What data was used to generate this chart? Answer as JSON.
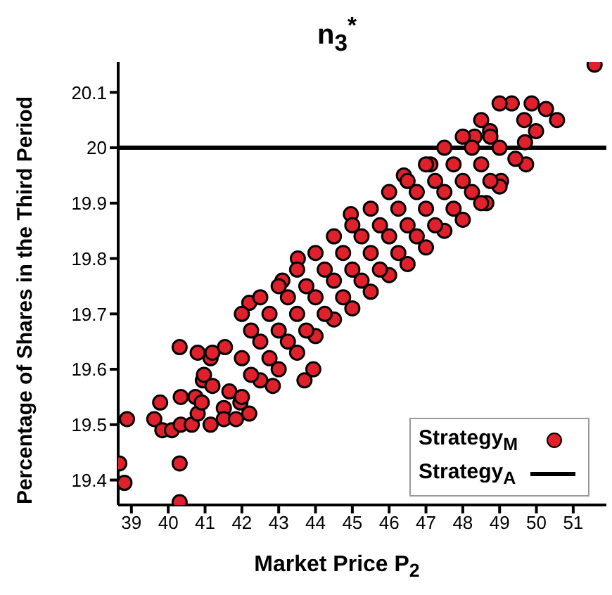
{
  "chart_data": {
    "type": "scatter",
    "title": "n$_{3}$$^{*}$",
    "xlabel": "Market Price P$_{2}$",
    "ylabel": "Percentage of Shares in the Third Period",
    "xlim": [
      38.64,
      51.9
    ],
    "ylim": [
      19.355,
      20.155
    ],
    "xticks": [
      39,
      40,
      41,
      42,
      43,
      44,
      45,
      46,
      47,
      48,
      49,
      50,
      51
    ],
    "yticks": [
      {
        "value": 19.4,
        "label": "19.4"
      },
      {
        "value": 19.5,
        "label": "19.5"
      },
      {
        "value": 19.6,
        "label": "19.6"
      },
      {
        "value": 19.7,
        "label": "19.7"
      },
      {
        "value": 19.8,
        "label": "19.8"
      },
      {
        "value": 19.9,
        "label": "19.9"
      },
      20,
      {
        "value": 20.1,
        "label": "20.1"
      }
    ],
    "legend": "bottom right",
    "marker": "circle",
    "series": [
      {
        "name": "Strategy$_{M}$",
        "color": "#e0212b",
        "x": [
          38.67,
          38.81,
          38.88,
          39.62,
          39.78,
          39.84,
          40.1,
          40.31,
          40.31,
          40.31,
          40.34,
          40.34,
          40.64,
          40.74,
          40.8,
          40.8,
          40.91,
          40.94,
          40.97,
          41.15,
          41.2,
          41.15,
          41.2,
          41.51,
          41.51,
          41.54,
          41.66,
          41.84,
          41.96,
          42.2,
          42.84,
          43.1,
          43.7,
          43.94,
          51.58,
          49.33,
          49.87,
          50.26,
          50.56,
          49.99,
          49.67,
          49.69,
          49.72,
          49.43,
          49.04,
          48.64,
          48.32,
          48.74,
          47.12,
          46.4,
          44.96,
          43.52,
          42.2,
          42,
          42.5,
          43,
          43.5,
          44,
          44.5,
          45,
          45.5,
          46,
          46.5,
          47,
          47.5,
          48,
          48.5,
          49,
          42,
          42.5,
          43,
          43.5,
          44,
          44.5,
          45,
          45.5,
          46,
          46.5,
          47,
          47.5,
          48,
          48.5,
          49,
          42,
          42.5,
          43,
          43.5,
          44,
          44.5,
          45,
          45.5,
          46,
          46.5,
          47,
          47.5,
          48,
          48.5,
          49,
          42.25,
          42.75,
          43.25,
          43.75,
          44.25,
          44.75,
          45.25,
          45.75,
          46.25,
          46.75,
          47.25,
          47.75,
          48.25,
          48.75,
          42.25,
          42.75,
          43.25,
          43.75,
          44.25,
          44.75,
          45.25,
          45.75,
          46.25,
          46.75,
          47.25,
          47.75,
          48.25,
          48.75
        ],
        "values": [
          19.43,
          19.395,
          19.51,
          19.51,
          19.54,
          19.49,
          19.49,
          19.43,
          19.36,
          19.64,
          19.55,
          19.5,
          19.5,
          19.55,
          19.63,
          19.52,
          19.54,
          19.58,
          19.59,
          19.5,
          19.57,
          19.62,
          19.63,
          19.53,
          19.51,
          19.64,
          19.56,
          19.51,
          19.54,
          19.52,
          19.57,
          19.76,
          19.58,
          19.6,
          20.15,
          20.08,
          20.08,
          20.07,
          20.05,
          20.03,
          20.05,
          20.01,
          19.97,
          19.98,
          19.94,
          19.9,
          20.02,
          20.03,
          19.97,
          19.95,
          19.88,
          19.8,
          19.72,
          19.7,
          19.73,
          19.75,
          19.78,
          19.81,
          19.84,
          19.86,
          19.89,
          19.92,
          19.94,
          19.97,
          20.0,
          20.02,
          20.05,
          20.08,
          19.62,
          19.65,
          19.67,
          19.7,
          19.73,
          19.76,
          19.78,
          19.81,
          19.84,
          19.86,
          19.89,
          19.92,
          19.94,
          19.97,
          20.0,
          19.55,
          19.58,
          19.6,
          19.63,
          19.66,
          19.69,
          19.71,
          19.74,
          19.77,
          19.79,
          19.82,
          19.85,
          19.87,
          19.9,
          19.93,
          19.67,
          19.7,
          19.73,
          19.75,
          19.78,
          19.81,
          19.84,
          19.86,
          19.89,
          19.92,
          19.94,
          19.97,
          20.0,
          20.02,
          19.59,
          19.62,
          19.65,
          19.67,
          19.7,
          19.73,
          19.76,
          19.78,
          19.81,
          19.84,
          19.86,
          19.89,
          19.92,
          19.94
        ]
      }
    ],
    "ref_lines": [
      {
        "axis": "y",
        "value": 20,
        "label": "Strategy$_{A}$",
        "color": "#000000",
        "line_style": "solid"
      }
    ]
  }
}
